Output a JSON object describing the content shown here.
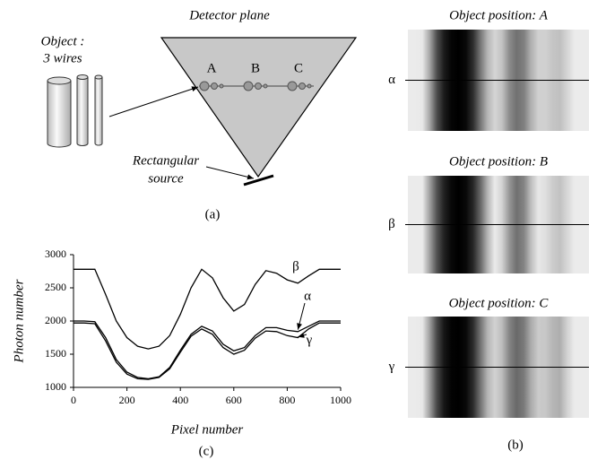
{
  "diagram": {
    "object_label": "Object :",
    "object_label_2": "3 wires",
    "detector_label": "Detector plane",
    "points": [
      "A",
      "B",
      "C"
    ],
    "source_label": "Rectangular",
    "source_label_2": "source",
    "caption": "(a)"
  },
  "panels": {
    "caption": "(b)",
    "items": [
      {
        "title": "Object position: A",
        "symbol": "α",
        "series": 1
      },
      {
        "title": "Object position: B",
        "symbol": "β",
        "series": 0
      },
      {
        "title": "Object position: C",
        "symbol": "γ",
        "series": 2
      }
    ]
  },
  "chart_data": {
    "type": "line",
    "x_label": "Pixel number",
    "y_label": "Photon number",
    "caption": "(c)",
    "xlim": [
      0,
      1000
    ],
    "ylim": [
      1000,
      3000
    ],
    "xticks": [
      0,
      200,
      400,
      600,
      800,
      1000
    ],
    "yticks": [
      1000,
      1500,
      2000,
      2500,
      3000
    ],
    "x": [
      0,
      40,
      80,
      120,
      160,
      200,
      240,
      280,
      320,
      360,
      400,
      440,
      480,
      520,
      560,
      600,
      640,
      680,
      720,
      760,
      800,
      840,
      880,
      920,
      960,
      1000
    ],
    "series": [
      {
        "name": "β",
        "color": "#000000",
        "values": [
          2780,
          2780,
          2780,
          2400,
          2000,
          1750,
          1620,
          1580,
          1620,
          1780,
          2100,
          2500,
          2780,
          2650,
          2350,
          2150,
          2250,
          2550,
          2760,
          2720,
          2620,
          2570,
          2680,
          2780,
          2780,
          2780
        ]
      },
      {
        "name": "α",
        "color": "#000000",
        "values": [
          2000,
          2000,
          1990,
          1750,
          1420,
          1230,
          1150,
          1130,
          1160,
          1300,
          1560,
          1800,
          1920,
          1850,
          1650,
          1550,
          1600,
          1780,
          1900,
          1900,
          1860,
          1840,
          1920,
          2000,
          2000,
          2000
        ]
      },
      {
        "name": "γ",
        "color": "#000000",
        "values": [
          1970,
          1970,
          1960,
          1700,
          1380,
          1200,
          1130,
          1120,
          1150,
          1280,
          1530,
          1770,
          1880,
          1800,
          1600,
          1500,
          1560,
          1740,
          1850,
          1840,
          1780,
          1750,
          1880,
          1970,
          1970,
          1970
        ]
      }
    ]
  }
}
